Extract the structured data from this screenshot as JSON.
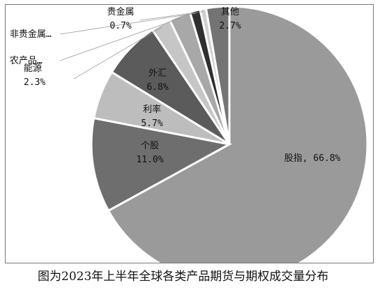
{
  "chart_data": {
    "type": "pie",
    "title": "",
    "slices": [
      {
        "label": "股指",
        "value": 66.8,
        "value_text": "66.8%",
        "color": "#9a9a9a"
      },
      {
        "label": "个股",
        "value": 11.0,
        "value_text": "11.0%",
        "color": "#6e6e6e"
      },
      {
        "label": "利率",
        "value": 5.7,
        "value_text": "5.7%",
        "color": "#bdbdbd"
      },
      {
        "label": "外汇",
        "value": 6.8,
        "value_text": "6.8%",
        "color": "#5b5b5b"
      },
      {
        "label": "能源",
        "value": 2.3,
        "value_text": "2.3%",
        "color": "#c6c6c6"
      },
      {
        "label": "农产品…",
        "value": 2.5,
        "value_text": "",
        "color": "#a8a8a8"
      },
      {
        "label": "非贵金属…",
        "value": 1.2,
        "value_text": "",
        "color": "#2f2f2f"
      },
      {
        "label": "贵金属",
        "value": 0.7,
        "value_text": "0.7%",
        "color": "#d0d0d0"
      },
      {
        "label": "其他",
        "value": 2.7,
        "value_text": "2.7%",
        "color": "#747474"
      }
    ]
  },
  "caption": "图为2023年上半年全球各类产品期货与期权成交量分布"
}
